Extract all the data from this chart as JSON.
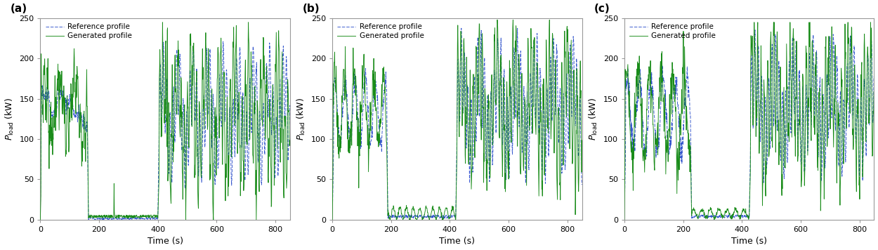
{
  "title_a": "(a)",
  "title_b": "(b)",
  "title_c": "(c)",
  "xlabel": "Time (s)",
  "ylabel_latex": "$P_{\\mathrm{load}}$ (kW)",
  "xlim": [
    0,
    850
  ],
  "ylim": [
    0,
    250
  ],
  "xticks": [
    0,
    200,
    400,
    600,
    800
  ],
  "yticks": [
    0,
    50,
    100,
    150,
    200,
    250
  ],
  "ref_color": "#3355cc",
  "gen_color": "#1a8c1a",
  "ref_label": "Reference profile",
  "gen_label": "Generated profile",
  "background": "#ffffff",
  "figsize": [
    12.5,
    3.56
  ],
  "dpi": 100
}
